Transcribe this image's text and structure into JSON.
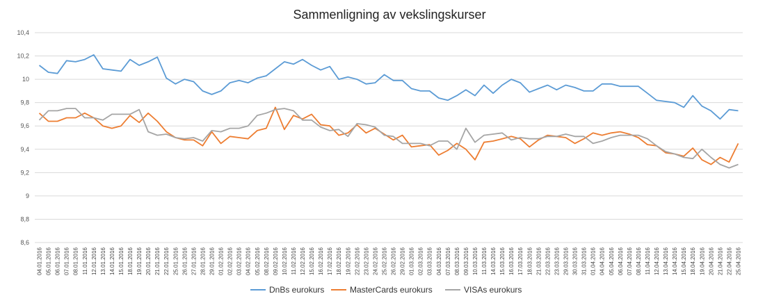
{
  "chart_data": {
    "type": "line",
    "title": "Sammenligning av vekslingskurser",
    "ylim": [
      8.6,
      10.4
    ],
    "yticks": [
      "8,6",
      "8,8",
      "9",
      "9,2",
      "9,4",
      "9,6",
      "9,8",
      "10",
      "10,2",
      "10,4"
    ],
    "grid": true,
    "legend_position": "bottom",
    "x": [
      "04.01.2016",
      "05.01.2016",
      "06.01.2016",
      "07.01.2016",
      "08.01.2016",
      "11.01.2016",
      "12.01.2016",
      "13.01.2016",
      "14.01.2016",
      "15.01.2016",
      "18.01.2016",
      "19.01.2016",
      "20.01.2016",
      "21.01.2016",
      "22.01.2016",
      "25.01.2016",
      "26.01.2016",
      "27.01.2016",
      "28.01.2016",
      "29.01.2016",
      "01.02.2016",
      "02.02.2016",
      "03.02.2016",
      "04.02.2016",
      "05.02.2016",
      "08.02.2016",
      "09.02.2016",
      "10.02.2016",
      "11.02.2016",
      "12.02.2016",
      "15.02.2016",
      "16.02.2016",
      "17.02.2016",
      "18.02.2016",
      "19.02.2016",
      "22.02.2016",
      "23.02.2016",
      "24.02.2016",
      "25.02.2016",
      "26.02.2016",
      "29.02.2016",
      "01.03.2016",
      "02.03.2016",
      "03.03.2016",
      "04.03.2016",
      "07.03.2016",
      "08.03.2016",
      "09.03.2016",
      "10.03.2016",
      "11.03.2016",
      "14.03.2016",
      "15.03.2016",
      "16.03.2016",
      "17.03.2016",
      "18.03.2016",
      "21.03.2016",
      "22.03.2016",
      "23.03.2016",
      "29.03.2016",
      "30.03.2016",
      "31.03.2016",
      "01.04.2016",
      "04.04.2016",
      "05.04.2016",
      "06.04.2016",
      "07.04.2016",
      "08.04.2016",
      "11.04.2016",
      "12.04.2016",
      "13.04.2016",
      "14.04.2016",
      "15.04.2016",
      "18.04.2016",
      "19.04.2016",
      "20.04.2016",
      "21.04.2016",
      "22.04.2016",
      "25.04.2016"
    ],
    "series": [
      {
        "name": "DnBs eurokurs",
        "color": "#5b9bd5",
        "values": [
          10.12,
          10.06,
          10.05,
          10.16,
          10.15,
          10.17,
          10.21,
          10.09,
          10.08,
          10.07,
          10.17,
          10.12,
          10.15,
          10.19,
          10.01,
          9.96,
          10.0,
          9.98,
          9.9,
          9.87,
          9.9,
          9.97,
          9.99,
          9.97,
          10.01,
          10.03,
          10.09,
          10.15,
          10.13,
          10.17,
          10.12,
          10.08,
          10.11,
          10.0,
          10.02,
          10.0,
          9.96,
          9.97,
          10.04,
          9.99,
          9.99,
          9.92,
          9.9,
          9.9,
          9.84,
          9.82,
          9.86,
          9.91,
          9.86,
          9.95,
          9.88,
          9.95,
          10.0,
          9.97,
          9.89,
          9.92,
          9.95,
          9.91,
          9.95,
          9.93,
          9.9,
          9.9,
          9.96,
          9.96,
          9.94,
          9.94,
          9.94,
          9.88,
          9.82,
          9.81,
          9.8,
          9.76,
          9.86,
          9.77,
          9.73,
          9.66,
          9.74,
          9.73
        ]
      },
      {
        "name": "MasterCards eurokurs",
        "color": "#ed7d31",
        "values": [
          9.71,
          9.64,
          9.64,
          9.67,
          9.67,
          9.71,
          9.67,
          9.6,
          9.58,
          9.6,
          9.69,
          9.63,
          9.71,
          9.64,
          9.55,
          9.5,
          9.48,
          9.48,
          9.43,
          9.55,
          9.45,
          9.51,
          9.5,
          9.49,
          9.56,
          9.58,
          9.76,
          9.57,
          9.69,
          9.66,
          9.7,
          9.61,
          9.6,
          9.52,
          9.54,
          9.61,
          9.54,
          9.58,
          9.53,
          9.48,
          9.52,
          9.42,
          9.43,
          9.44,
          9.35,
          9.39,
          9.45,
          9.4,
          9.31,
          9.46,
          9.47,
          9.49,
          9.51,
          9.49,
          9.42,
          9.48,
          9.52,
          9.51,
          9.5,
          9.45,
          9.49,
          9.54,
          9.52,
          9.54,
          9.55,
          9.53,
          9.5,
          9.44,
          9.43,
          9.37,
          9.36,
          9.34,
          9.41,
          9.31,
          9.27,
          9.33,
          9.29,
          9.45
        ]
      },
      {
        "name": "VISAs eurokurs",
        "color": "#a5a5a5",
        "values": [
          9.65,
          9.73,
          9.73,
          9.75,
          9.75,
          9.67,
          9.67,
          9.65,
          9.7,
          9.7,
          9.7,
          9.74,
          9.55,
          9.52,
          9.53,
          9.5,
          9.49,
          9.5,
          9.47,
          9.56,
          9.55,
          9.58,
          9.58,
          9.6,
          9.69,
          9.71,
          9.74,
          9.75,
          9.73,
          9.65,
          9.65,
          9.59,
          9.56,
          9.57,
          9.51,
          9.62,
          9.61,
          9.59,
          9.52,
          9.51,
          9.45,
          9.45,
          9.45,
          9.43,
          9.47,
          9.47,
          9.4,
          9.58,
          9.46,
          9.52,
          9.53,
          9.54,
          9.48,
          9.5,
          9.49,
          9.49,
          9.51,
          9.51,
          9.53,
          9.51,
          9.51,
          9.45,
          9.47,
          9.5,
          9.52,
          9.52,
          9.52,
          9.49,
          9.43,
          9.38,
          9.36,
          9.33,
          9.32,
          9.4,
          9.33,
          9.27,
          9.24,
          9.27
        ]
      }
    ]
  }
}
